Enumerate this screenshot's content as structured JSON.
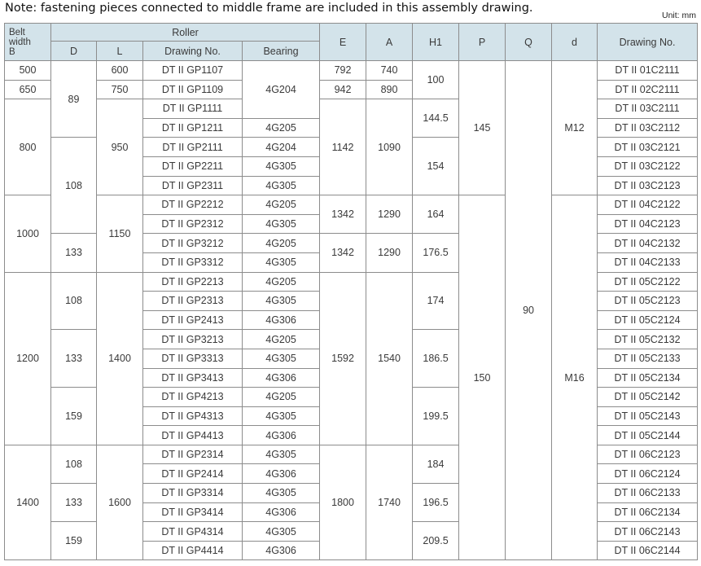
{
  "note": "Note: fastening pieces connected to middle frame are included in this assembly drawing.",
  "unit": "Unit: mm",
  "header": {
    "belt_width": [
      "Belt",
      "width",
      "B"
    ],
    "roller": "Roller",
    "roller_sub": [
      "D",
      "L",
      "Drawing No.",
      "Bearing"
    ],
    "rest": [
      "E",
      "A",
      "H1",
      "P",
      "Q",
      "d",
      "Drawing No."
    ]
  },
  "colors": {
    "header_bg": "#d3e3ea",
    "border": "#8c8c8c"
  },
  "rows": [
    [
      {
        "v": "500"
      },
      {
        "v": "89",
        "rs": 4
      },
      {
        "v": "600"
      },
      {
        "v": "DT II GP1107"
      },
      {
        "v": "4G204",
        "rs": 3
      },
      {
        "v": "792"
      },
      {
        "v": "740"
      },
      {
        "v": "100",
        "rs": 2
      },
      {
        "v": "145",
        "rs": 7
      },
      {
        "v": "90",
        "rs": 26
      },
      {
        "v": "M12",
        "rs": 7
      },
      {
        "v": "DT II 01C2111"
      }
    ],
    [
      {
        "v": "650"
      },
      {
        "v": "750"
      },
      {
        "v": "DT II GP1109"
      },
      {
        "v": "942"
      },
      {
        "v": "890"
      },
      {
        "v": "DT II 02C2111"
      }
    ],
    [
      {
        "v": "800",
        "rs": 5
      },
      {
        "v": "950",
        "rs": 5
      },
      {
        "v": "DT II GP1111"
      },
      {
        "v": "1142",
        "rs": 5
      },
      {
        "v": "1090",
        "rs": 5
      },
      {
        "v": "144.5",
        "rs": 2
      },
      {
        "v": "DT II 03C2111"
      }
    ],
    [
      {
        "v": "DT II GP1211"
      },
      {
        "v": "4G205"
      },
      {
        "v": "DT II 03C2112"
      }
    ],
    [
      {
        "v": "108",
        "rs": 5
      },
      {
        "v": "DT II GP2111"
      },
      {
        "v": "4G204"
      },
      {
        "v": "154",
        "rs": 3
      },
      {
        "v": "DT II 03C2121"
      }
    ],
    [
      {
        "v": "DT II GP2211"
      },
      {
        "v": "4G305"
      },
      {
        "v": "DT II 03C2122"
      }
    ],
    [
      {
        "v": "DT II GP2311"
      },
      {
        "v": "4G305"
      },
      {
        "v": "DT II 03C2123"
      }
    ],
    [
      {
        "v": "1000",
        "rs": 4
      },
      {
        "v": "1150",
        "rs": 4
      },
      {
        "v": "DT II GP2212"
      },
      {
        "v": "4G205"
      },
      {
        "v": "1342",
        "rs": 2
      },
      {
        "v": "1290",
        "rs": 2
      },
      {
        "v": "164",
        "rs": 2
      },
      {
        "v": "150",
        "rs": 19
      },
      {
        "v": "M16",
        "rs": 19
      },
      {
        "v": "DT II 04C2122"
      }
    ],
    [
      {
        "v": "DT II GP2312"
      },
      {
        "v": "4G305"
      },
      {
        "v": "DT II 04C2123"
      }
    ],
    [
      {
        "v": "133",
        "rs": 2
      },
      {
        "v": "DT II GP3212"
      },
      {
        "v": "4G205"
      },
      {
        "v": "1342",
        "rs": 2
      },
      {
        "v": "1290",
        "rs": 2
      },
      {
        "v": "176.5",
        "rs": 2
      },
      {
        "v": "DT II 04C2132"
      }
    ],
    [
      {
        "v": "DT II GP3312"
      },
      {
        "v": "4G305"
      },
      {
        "v": "DT II 04C2133"
      }
    ],
    [
      {
        "v": "1200",
        "rs": 9
      },
      {
        "v": "108",
        "rs": 3
      },
      {
        "v": "1400",
        "rs": 9
      },
      {
        "v": "DT II GP2213"
      },
      {
        "v": "4G205"
      },
      {
        "v": "1592",
        "rs": 9
      },
      {
        "v": "1540",
        "rs": 9
      },
      {
        "v": "174",
        "rs": 3
      },
      {
        "v": "DT II 05C2122"
      }
    ],
    [
      {
        "v": "DT II GP2313"
      },
      {
        "v": "4G305"
      },
      {
        "v": "DT II 05C2123"
      }
    ],
    [
      {
        "v": "DT II GP2413"
      },
      {
        "v": "4G306"
      },
      {
        "v": "DT II 05C2124"
      }
    ],
    [
      {
        "v": "133",
        "rs": 3
      },
      {
        "v": "DT II GP3213"
      },
      {
        "v": "4G205"
      },
      {
        "v": "186.5",
        "rs": 3
      },
      {
        "v": "DT II 05C2132"
      }
    ],
    [
      {
        "v": "DT II GP3313"
      },
      {
        "v": "4G305"
      },
      {
        "v": "DT II 05C2133"
      }
    ],
    [
      {
        "v": "DT II GP3413"
      },
      {
        "v": "4G306"
      },
      {
        "v": "DT II 05C2134"
      }
    ],
    [
      {
        "v": "159",
        "rs": 3
      },
      {
        "v": "DT II GP4213"
      },
      {
        "v": "4G205"
      },
      {
        "v": "199.5",
        "rs": 3
      },
      {
        "v": "DT II 05C2142"
      }
    ],
    [
      {
        "v": "DT II GP4313"
      },
      {
        "v": "4G305"
      },
      {
        "v": "DT II 05C2143"
      }
    ],
    [
      {
        "v": "DT II GP4413"
      },
      {
        "v": "4G306"
      },
      {
        "v": "DT II 05C2144"
      }
    ],
    [
      {
        "v": "1400",
        "rs": 6
      },
      {
        "v": "108",
        "rs": 2
      },
      {
        "v": "1600",
        "rs": 6
      },
      {
        "v": "DT II GP2314"
      },
      {
        "v": "4G305"
      },
      {
        "v": "1800",
        "rs": 6
      },
      {
        "v": "1740",
        "rs": 6
      },
      {
        "v": "184",
        "rs": 2
      },
      {
        "v": "DT II 06C2123"
      }
    ],
    [
      {
        "v": "DT II GP2414"
      },
      {
        "v": "4G306"
      },
      {
        "v": "DT II 06C2124"
      }
    ],
    [
      {
        "v": "133",
        "rs": 2
      },
      {
        "v": "DT II GP3314"
      },
      {
        "v": "4G305"
      },
      {
        "v": "196.5",
        "rs": 2
      },
      {
        "v": "DT II 06C2133"
      }
    ],
    [
      {
        "v": "DT II GP3414"
      },
      {
        "v": "4G306"
      },
      {
        "v": "DT II 06C2134"
      }
    ],
    [
      {
        "v": "159",
        "rs": 2
      },
      {
        "v": "DT II GP4314"
      },
      {
        "v": "4G305"
      },
      {
        "v": "209.5",
        "rs": 2
      },
      {
        "v": "DT II 06C2143"
      }
    ],
    [
      {
        "v": "DT II GP4414"
      },
      {
        "v": "4G306"
      },
      {
        "v": "DT II 06C2144"
      }
    ]
  ]
}
